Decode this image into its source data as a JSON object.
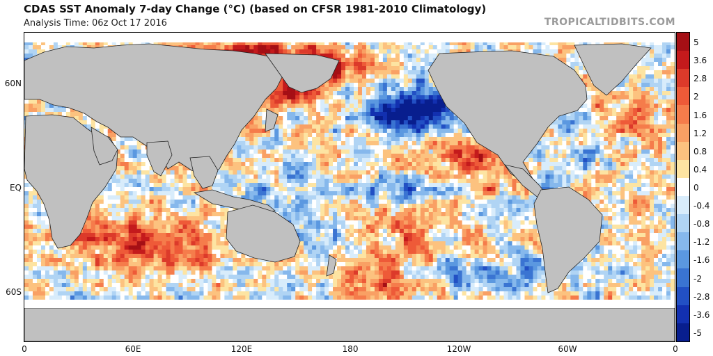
{
  "title": "CDAS SST Anomaly 7-day Change (°C) (based on CFSR 1981-2010 Climatology)",
  "subtitle": "Analysis Time: 06z Oct 17 2016",
  "credit": "TROPICALTIDBITS.COM",
  "map": {
    "type": "global sea surface temperature anomaly map",
    "land_color": "#c0c0c0",
    "ice_color": "#ffffff",
    "lat_labels": [
      "60N",
      "EQ",
      "60S"
    ],
    "lon_labels": [
      "0",
      "60E",
      "120E",
      "180",
      "120W",
      "60W",
      "0"
    ]
  },
  "colorbar": {
    "labels": [
      "5",
      "3.6",
      "2.8",
      "2",
      "1.6",
      "1.2",
      "0.8",
      "0.4",
      "0",
      "-0.4",
      "-0.8",
      "-1.2",
      "-1.6",
      "-2",
      "-2.8",
      "-3.6",
      "-5"
    ],
    "colors": [
      "#a50f15",
      "#c41a1c",
      "#dc3a2a",
      "#ee5a38",
      "#f57c4b",
      "#f9a064",
      "#fcc27f",
      "#fde4a2",
      "#ffffff",
      "#d8ecfb",
      "#b0d4f4",
      "#86b8ec",
      "#5b98e0",
      "#3a74d2",
      "#2250c4",
      "#1230b0",
      "#081e8e"
    ]
  }
}
